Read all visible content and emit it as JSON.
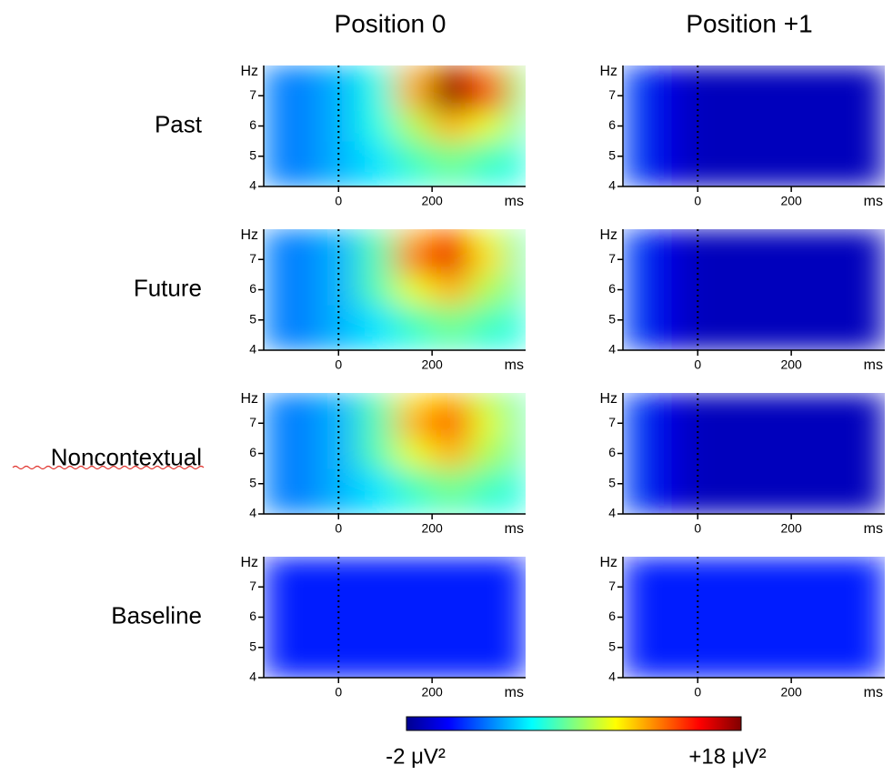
{
  "columns": [
    "Position 0",
    "Position +1"
  ],
  "rows": [
    "Past",
    "Future",
    "Noncontextual",
    "Baseline"
  ],
  "colorbar": {
    "zlim": [
      -2,
      18
    ],
    "zticks": [
      {
        "value": -2,
        "label": "-2 μV²"
      },
      {
        "value": 18,
        "label": "+18 μV²"
      }
    ],
    "colormap": [
      "#00008f",
      "#0000ff",
      "#0080ff",
      "#00ffff",
      "#80ff80",
      "#ffff00",
      "#ff8000",
      "#ff0000",
      "#800000"
    ]
  },
  "chart_data": [
    {
      "type": "heatmap",
      "x": [
        -160,
        -80,
        0,
        80,
        160,
        240,
        320,
        400
      ],
      "y": [
        4,
        5,
        6,
        7,
        8
      ],
      "values": [
        [
          3,
          3,
          4,
          5,
          6,
          7,
          6,
          6
        ],
        [
          3,
          3,
          4,
          5,
          7,
          8,
          7,
          6
        ],
        [
          3,
          3,
          4,
          6,
          9,
          12,
          10,
          7
        ],
        [
          3,
          3,
          4,
          6,
          12,
          18,
          14,
          8
        ],
        [
          3,
          3,
          4,
          6,
          12,
          17,
          13,
          8
        ]
      ],
      "xlim": [
        -160,
        400
      ],
      "ylim": [
        4,
        8
      ],
      "xticks": [
        0,
        200
      ],
      "yticks": [
        4,
        5,
        6,
        7
      ],
      "xlabel": "ms",
      "ylabel": "Hz"
    },
    {
      "type": "heatmap",
      "x": [
        -160,
        -80,
        0,
        80,
        160,
        240,
        320,
        400
      ],
      "y": [
        4,
        5,
        6,
        7,
        8
      ],
      "values": [
        [
          2,
          0,
          -1,
          -1,
          -1,
          -1,
          -1,
          -1
        ],
        [
          2,
          0,
          -1,
          -1,
          -1,
          -1,
          -1,
          -1
        ],
        [
          2,
          0,
          -1,
          -1,
          -1,
          -1,
          -1,
          -1
        ],
        [
          2,
          0,
          -1,
          -1,
          -1,
          -1,
          -1,
          -1
        ],
        [
          2,
          0,
          -1,
          -1,
          -1,
          -1,
          -1,
          -1
        ]
      ],
      "xlim": [
        -160,
        400
      ],
      "ylim": [
        4,
        8
      ],
      "xticks": [
        0,
        200
      ],
      "yticks": [
        4,
        5,
        6,
        7
      ],
      "xlabel": "ms",
      "ylabel": "Hz"
    },
    {
      "type": "heatmap",
      "x": [
        -160,
        -80,
        0,
        80,
        160,
        240,
        320,
        400
      ],
      "y": [
        4,
        5,
        6,
        7,
        8
      ],
      "values": [
        [
          3,
          3,
          4,
          5,
          6,
          7,
          6,
          6
        ],
        [
          3,
          3,
          4,
          5,
          7,
          8,
          7,
          6
        ],
        [
          3,
          3,
          4,
          7,
          10,
          12,
          9,
          7
        ],
        [
          3,
          3,
          4,
          7,
          13,
          16,
          11,
          7
        ],
        [
          3,
          3,
          4,
          7,
          12,
          14,
          10,
          7
        ]
      ],
      "xlim": [
        -160,
        400
      ],
      "ylim": [
        4,
        8
      ],
      "xticks": [
        0,
        200
      ],
      "yticks": [
        4,
        5,
        6,
        7
      ],
      "xlabel": "ms",
      "ylabel": "Hz"
    },
    {
      "type": "heatmap",
      "x": [
        -160,
        -80,
        0,
        80,
        160,
        240,
        320,
        400
      ],
      "y": [
        4,
        5,
        6,
        7,
        8
      ],
      "values": [
        [
          2,
          0,
          -1,
          -1,
          -1,
          -1,
          -1,
          -1
        ],
        [
          2,
          0,
          -1,
          -1,
          -1,
          -1,
          -1,
          -1
        ],
        [
          2,
          0,
          -1,
          -1,
          -1,
          -1,
          -1,
          -1
        ],
        [
          2,
          0,
          -1,
          -1,
          -1,
          -1,
          -1,
          -1
        ],
        [
          2,
          0,
          -1,
          -1,
          -1,
          -1,
          -1,
          -1
        ]
      ],
      "xlim": [
        -160,
        400
      ],
      "ylim": [
        4,
        8
      ],
      "xticks": [
        0,
        200
      ],
      "yticks": [
        4,
        5,
        6,
        7
      ],
      "xlabel": "ms",
      "ylabel": "Hz"
    },
    {
      "type": "heatmap",
      "x": [
        -160,
        -80,
        0,
        80,
        160,
        240,
        320,
        400
      ],
      "y": [
        4,
        5,
        6,
        7,
        8
      ],
      "values": [
        [
          3,
          3,
          4,
          5,
          6,
          7,
          6,
          6
        ],
        [
          3,
          3,
          4,
          5,
          7,
          8,
          7,
          6
        ],
        [
          3,
          3,
          4,
          7,
          10,
          12,
          9,
          7
        ],
        [
          3,
          3,
          4,
          7,
          12,
          14,
          10,
          7
        ],
        [
          3,
          3,
          4,
          7,
          11,
          12,
          9,
          7
        ]
      ],
      "xlim": [
        -160,
        400
      ],
      "ylim": [
        4,
        8
      ],
      "xticks": [
        0,
        200
      ],
      "yticks": [
        4,
        5,
        6,
        7
      ],
      "xlabel": "ms",
      "ylabel": "Hz"
    },
    {
      "type": "heatmap",
      "x": [
        -160,
        -80,
        0,
        80,
        160,
        240,
        320,
        400
      ],
      "y": [
        4,
        5,
        6,
        7,
        8
      ],
      "values": [
        [
          2,
          0,
          -1,
          -1,
          -1,
          -1,
          -1,
          -1
        ],
        [
          2,
          0,
          -1,
          -1,
          -1,
          -1,
          -1,
          -1
        ],
        [
          2,
          0,
          -1,
          -1,
          -1,
          -1,
          -1,
          -1
        ],
        [
          2,
          0,
          -1,
          -1,
          -1,
          -1,
          -1,
          -1
        ],
        [
          2,
          0,
          -1,
          -1,
          -1,
          -1,
          -1,
          -1
        ]
      ],
      "xlim": [
        -160,
        400
      ],
      "ylim": [
        4,
        8
      ],
      "xticks": [
        0,
        200
      ],
      "yticks": [
        4,
        5,
        6,
        7
      ],
      "xlabel": "ms",
      "ylabel": "Hz"
    },
    {
      "type": "heatmap",
      "x": [
        -160,
        -80,
        0,
        80,
        160,
        240,
        320,
        400
      ],
      "y": [
        4,
        5,
        6,
        7,
        8
      ],
      "values": [
        [
          1,
          1,
          1,
          1,
          1,
          1,
          1,
          1
        ],
        [
          1,
          1,
          1,
          1,
          1,
          1,
          1,
          1
        ],
        [
          1,
          1,
          1,
          1,
          1,
          1,
          1,
          1
        ],
        [
          1,
          1,
          1,
          1,
          1,
          1,
          1,
          1
        ],
        [
          1,
          1,
          1,
          1,
          1,
          1,
          1,
          1
        ]
      ],
      "xlim": [
        -160,
        400
      ],
      "ylim": [
        4,
        8
      ],
      "xticks": [
        0,
        200
      ],
      "yticks": [
        4,
        5,
        6,
        7
      ],
      "xlabel": "ms",
      "ylabel": "Hz"
    },
    {
      "type": "heatmap",
      "x": [
        -160,
        -80,
        0,
        80,
        160,
        240,
        320,
        400
      ],
      "y": [
        4,
        5,
        6,
        7,
        8
      ],
      "values": [
        [
          1,
          1,
          1,
          1,
          1,
          1,
          1,
          1
        ],
        [
          1,
          1,
          1,
          1,
          1,
          1,
          1,
          1
        ],
        [
          1,
          1,
          1,
          1,
          1,
          1,
          1,
          1
        ],
        [
          1,
          1,
          1,
          1,
          1,
          1,
          1,
          1
        ],
        [
          1,
          1,
          1,
          1,
          1,
          1,
          1,
          1
        ]
      ],
      "xlim": [
        -160,
        400
      ],
      "ylim": [
        4,
        8
      ],
      "xticks": [
        0,
        200
      ],
      "yticks": [
        4,
        5,
        6,
        7
      ],
      "xlabel": "ms",
      "ylabel": "Hz"
    }
  ]
}
